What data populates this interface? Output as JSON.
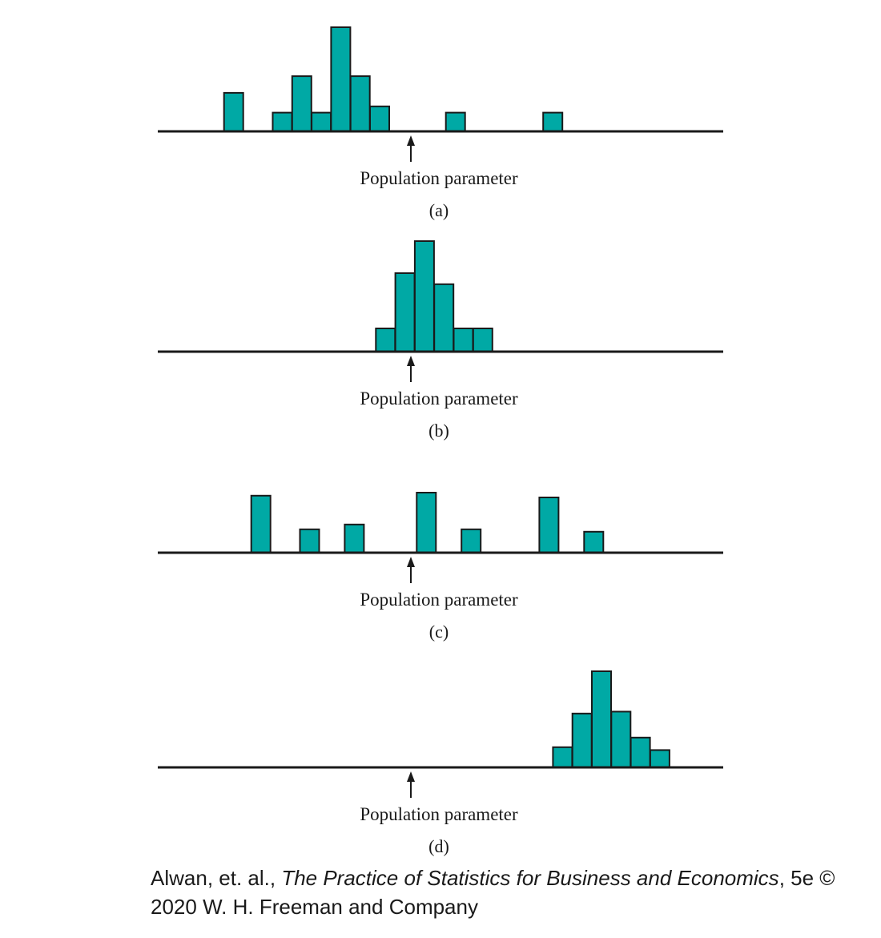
{
  "chart_data": [
    {
      "type": "bar",
      "panel_label": "(a)",
      "marker_label": "Population parameter",
      "parameter_position": 0,
      "bars": [
        {
          "x": -9.6,
          "height": 0.37
        },
        {
          "x": -7.1,
          "height": 0.18
        },
        {
          "x": -6.1,
          "height": 0.53
        },
        {
          "x": -5.1,
          "height": 0.18
        },
        {
          "x": -4.1,
          "height": 1.0
        },
        {
          "x": -3.1,
          "height": 0.53
        },
        {
          "x": -2.1,
          "height": 0.24
        },
        {
          "x": 1.8,
          "height": 0.18
        },
        {
          "x": 6.8,
          "height": 0.18
        }
      ]
    },
    {
      "type": "bar",
      "panel_label": "(b)",
      "marker_label": "Population parameter",
      "parameter_position": 0,
      "bars": [
        {
          "x": -1.8,
          "height": 0.21
        },
        {
          "x": -0.8,
          "height": 0.71
        },
        {
          "x": 0.2,
          "height": 1.0
        },
        {
          "x": 1.2,
          "height": 0.61
        },
        {
          "x": 2.2,
          "height": 0.21
        },
        {
          "x": 3.2,
          "height": 0.21
        }
      ]
    },
    {
      "type": "bar",
      "panel_label": "(c)",
      "marker_label": "Population parameter",
      "parameter_position": 0,
      "bars": [
        {
          "x": -8.2,
          "height": 0.95
        },
        {
          "x": -5.7,
          "height": 0.39
        },
        {
          "x": -3.4,
          "height": 0.47
        },
        {
          "x": 0.3,
          "height": 1.0
        },
        {
          "x": 2.6,
          "height": 0.39
        },
        {
          "x": 6.6,
          "height": 0.92
        },
        {
          "x": 8.9,
          "height": 0.35
        }
      ]
    },
    {
      "type": "bar",
      "panel_label": "(d)",
      "marker_label": "Population parameter",
      "parameter_position": 0,
      "bars": [
        {
          "x": 7.3,
          "height": 0.21
        },
        {
          "x": 8.3,
          "height": 0.56
        },
        {
          "x": 9.3,
          "height": 1.0
        },
        {
          "x": 10.3,
          "height": 0.58
        },
        {
          "x": 11.3,
          "height": 0.31
        },
        {
          "x": 12.3,
          "height": 0.18
        }
      ]
    }
  ],
  "caption": {
    "authors": "Alwan, et. al., ",
    "book_title": "The Practice of Statistics for Business and Economics",
    "rest": ", 5e © 2020 W. H. Freeman and Company"
  },
  "colors": {
    "bar_fill": "#00a9a5",
    "ink": "#1a1a1a"
  }
}
